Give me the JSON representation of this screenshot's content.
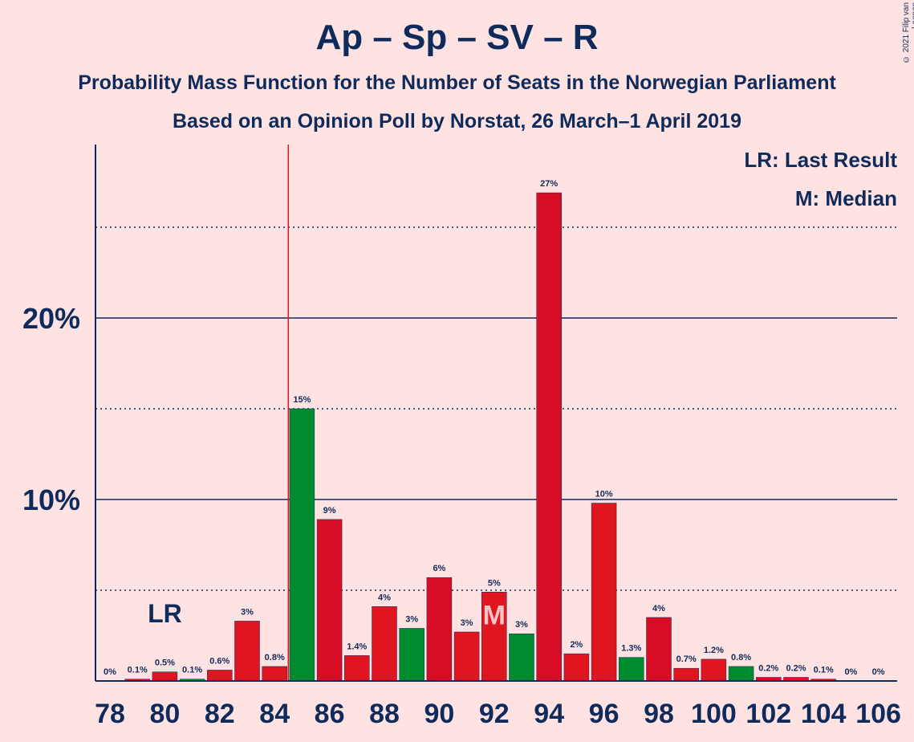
{
  "title": "Ap – Sp – SV – R",
  "subtitle1": "Probability Mass Function for the Number of Seats in the Norwegian Parliament",
  "subtitle2": "Based on an Opinion Poll by Norstat, 26 March–1 April 2019",
  "copyright": "© 2021 Filip van Laenen",
  "legend": {
    "last_result": "LR: Last Result",
    "median": "M: Median"
  },
  "markers": {
    "last_result_label": "LR",
    "last_result_seats": 80,
    "majority_line_seats": 84.5,
    "median_label": "M",
    "median_seats": 92
  },
  "colors": {
    "background": "#FFE3E3",
    "text": "#0F2B5B",
    "red": "#E0151F",
    "dark_red": "#D60D24",
    "green": "#008C2E",
    "majority_line": "#E0151F"
  },
  "chart_data": {
    "type": "bar",
    "xlabel": "",
    "ylabel": "",
    "ylim": [
      0,
      29.5
    ],
    "y_ticks_major": [
      10,
      20
    ],
    "y_tick_labels": [
      "10%",
      "20%"
    ],
    "y_dotted": [
      5,
      15,
      25
    ],
    "x_tick_labels": [
      "78",
      "80",
      "82",
      "84",
      "86",
      "88",
      "90",
      "92",
      "94",
      "96",
      "98",
      "100",
      "102",
      "104",
      "106"
    ],
    "x_ticks": [
      78,
      80,
      82,
      84,
      86,
      88,
      90,
      92,
      94,
      96,
      98,
      100,
      102,
      104,
      106
    ],
    "bars": [
      {
        "x": 78,
        "value": 0,
        "label": "0%",
        "color": "red"
      },
      {
        "x": 79,
        "value": 0.1,
        "label": "0.1%",
        "color": "red"
      },
      {
        "x": 80,
        "value": 0.5,
        "label": "0.5%",
        "color": "red"
      },
      {
        "x": 81,
        "value": 0.1,
        "label": "0.1%",
        "color": "green"
      },
      {
        "x": 82,
        "value": 0.6,
        "label": "0.6%",
        "color": "red"
      },
      {
        "x": 83,
        "value": 3.3,
        "label": "3%",
        "color": "red"
      },
      {
        "x": 84,
        "value": 0.8,
        "label": "0.8%",
        "color": "red"
      },
      {
        "x": 85,
        "value": 15.0,
        "label": "15%",
        "color": "green"
      },
      {
        "x": 86,
        "value": 8.9,
        "label": "9%",
        "color": "dark_red"
      },
      {
        "x": 87,
        "value": 1.4,
        "label": "1.4%",
        "color": "red"
      },
      {
        "x": 88,
        "value": 4.1,
        "label": "4%",
        "color": "red"
      },
      {
        "x": 89,
        "value": 2.9,
        "label": "3%",
        "color": "green"
      },
      {
        "x": 90,
        "value": 5.7,
        "label": "6%",
        "color": "dark_red"
      },
      {
        "x": 91,
        "value": 2.7,
        "label": "3%",
        "color": "red"
      },
      {
        "x": 92,
        "value": 4.9,
        "label": "5%",
        "color": "red"
      },
      {
        "x": 93,
        "value": 2.6,
        "label": "3%",
        "color": "green"
      },
      {
        "x": 94,
        "value": 26.9,
        "label": "27%",
        "color": "dark_red"
      },
      {
        "x": 95,
        "value": 1.5,
        "label": "2%",
        "color": "red"
      },
      {
        "x": 96,
        "value": 9.8,
        "label": "10%",
        "color": "red"
      },
      {
        "x": 97,
        "value": 1.3,
        "label": "1.3%",
        "color": "green"
      },
      {
        "x": 98,
        "value": 3.5,
        "label": "4%",
        "color": "dark_red"
      },
      {
        "x": 99,
        "value": 0.7,
        "label": "0.7%",
        "color": "red"
      },
      {
        "x": 100,
        "value": 1.2,
        "label": "1.2%",
        "color": "red"
      },
      {
        "x": 101,
        "value": 0.8,
        "label": "0.8%",
        "color": "green"
      },
      {
        "x": 102,
        "value": 0.2,
        "label": "0.2%",
        "color": "dark_red"
      },
      {
        "x": 103,
        "value": 0.2,
        "label": "0.2%",
        "color": "red"
      },
      {
        "x": 104,
        "value": 0.1,
        "label": "0.1%",
        "color": "red"
      },
      {
        "x": 105,
        "value": 0,
        "label": "0%",
        "color": "red"
      },
      {
        "x": 106,
        "value": 0,
        "label": "0%",
        "color": "red"
      }
    ]
  }
}
